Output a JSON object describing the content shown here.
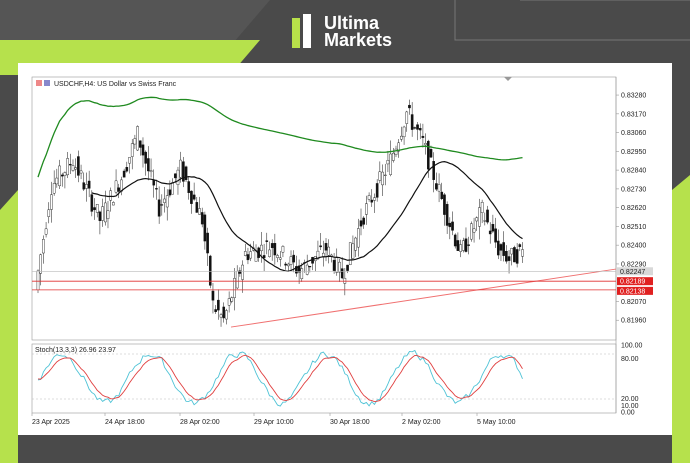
{
  "brand": {
    "line1": "Ultima",
    "line2": "Markets"
  },
  "chart_data": {
    "type": "candlestick",
    "title": "USDCHF,H4:  US Dollar vs Swiss Franc",
    "ylim": [
      0.8185,
      0.8338
    ],
    "price_ticks": [
      "0.83280",
      "0.83170",
      "0.83060",
      "0.82950",
      "0.82840",
      "0.82730",
      "0.82620",
      "0.82510",
      "0.82400",
      "0.82290",
      "0.82070",
      "0.81960"
    ],
    "current_price_label": "0.82247",
    "support_labels": [
      "0.82189",
      "0.82138"
    ],
    "time_labels": [
      "23 Apr 2025",
      "24 Apr 18:00",
      "28 Apr 02:00",
      "29 Apr 10:00",
      "30 Apr 18:00",
      "2 May 02:00",
      "5 May 10:00"
    ],
    "stoch": {
      "label": "Stoch(13,3,3) 26.96 23.97",
      "ticks": [
        "100.00",
        "80.00",
        "20.00",
        "10.00",
        "0.00"
      ]
    },
    "colors": {
      "ma_long": "#1f8a1f",
      "ma_short": "#111111",
      "support": "#e03030",
      "trendline": "#f07070",
      "stoch_main": "#4fc3d6",
      "stoch_signal": "#e04040"
    }
  }
}
